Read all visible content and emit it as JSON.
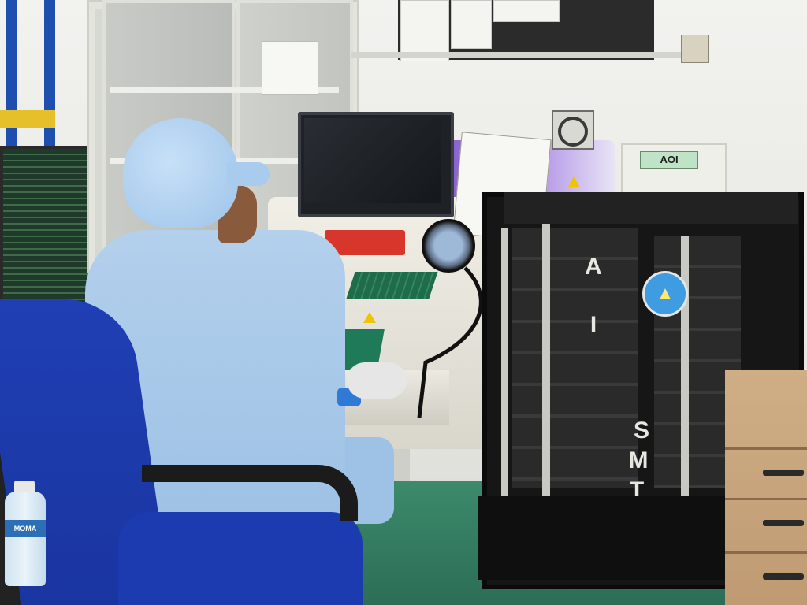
{
  "scene": {
    "description_kind": "photograph",
    "colors": {
      "wall": "#ecece8",
      "cleanroom_suit": "#a8c9ea",
      "chair": "#1d3bb0",
      "rack": "#161616",
      "desk_mat": "#2f7a5d",
      "machine_purple": "#8a5cd0"
    }
  },
  "machine": {
    "label": "AOI"
  },
  "rack": {
    "letters_top": [
      "A",
      "I"
    ],
    "letters_bottom": [
      "S",
      "M",
      "T"
    ]
  },
  "bottle": {
    "brand": "MOMA"
  }
}
